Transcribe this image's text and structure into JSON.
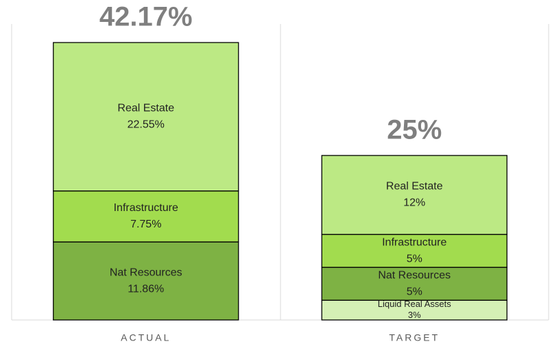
{
  "chart_data": {
    "type": "stacked_bar",
    "categories": [
      "ACTUAL",
      "TARGET"
    ],
    "series": [
      {
        "name": "Liquid Real Assets",
        "color": "#d5f0b5",
        "values": [
          null,
          3
        ],
        "value_labels": [
          null,
          "3%"
        ]
      },
      {
        "name": "Nat Resources",
        "color": "#7eb244",
        "values": [
          11.86,
          5
        ],
        "value_labels": [
          "11.86%",
          "5%"
        ]
      },
      {
        "name": "Infrastructure",
        "color": "#a2dc4e",
        "values": [
          7.75,
          5
        ],
        "value_labels": [
          "7.75%",
          "5%"
        ]
      },
      {
        "name": "Real Estate",
        "color": "#bce984",
        "values": [
          22.55,
          12
        ],
        "value_labels": [
          "22.55%",
          "12%"
        ]
      }
    ],
    "totals": [
      42.17,
      25
    ],
    "total_labels": [
      "42.17%",
      "25%"
    ]
  }
}
